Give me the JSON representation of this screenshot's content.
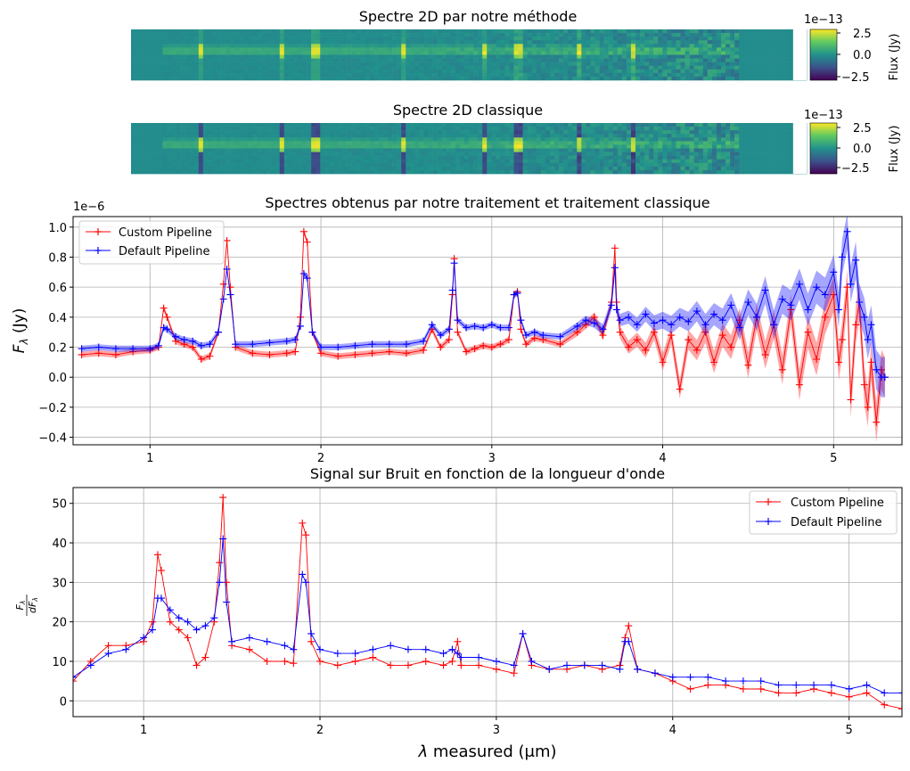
{
  "figure": {
    "heatmaps": [
      {
        "title": "Spectre 2D par notre méthode",
        "colorbar": {
          "label": "Flux (Jy)",
          "exponent": "1e−13",
          "ticks": [
            "2.5",
            "0.0",
            "−2.5"
          ]
        }
      },
      {
        "title": "Spectre 2D classique",
        "colorbar": {
          "label": "Flux (Jy)",
          "exponent": "1e−13",
          "ticks": [
            "2.5",
            "0.0",
            "−2.5"
          ]
        }
      }
    ]
  },
  "chart_data": [
    {
      "type": "heatmap",
      "title": "Spectre 2D par notre méthode",
      "colormap": "viridis",
      "value_range": [
        -3.5,
        3.5
      ],
      "value_scale": "1e-13",
      "bright_emission_rows": "central row brightest; scattered noise increasing toward long wavelengths",
      "colorbar_label": "Flux (Jy)"
    },
    {
      "type": "heatmap",
      "title": "Spectre 2D classique",
      "colormap": "viridis",
      "value_range": [
        -3.5,
        3.5
      ],
      "value_scale": "1e-13",
      "colorbar_label": "Flux (Jy)"
    },
    {
      "type": "line",
      "title": "Spectres obtenus par notre traitement et traitement classique",
      "ylabel": "F_λ (Jy)",
      "yscale_note": "1e−6",
      "xlim": [
        0.55,
        5.4
      ],
      "ylim": [
        -0.45,
        1.07
      ],
      "xticks": [
        1,
        2,
        3,
        4,
        5
      ],
      "yticks": [
        -0.4,
        -0.2,
        0.0,
        0.2,
        0.4,
        0.6,
        0.8,
        1.0
      ],
      "ytick_labels": [
        "−0.4",
        "−0.2",
        "0.0",
        "0.2",
        "0.4",
        "0.6",
        "0.8",
        "1.0"
      ],
      "grid": true,
      "legend_position": "upper-left",
      "series": [
        {
          "name": "Custom Pipeline",
          "color": "#ff0000",
          "x": [
            0.6,
            0.7,
            0.8,
            0.9,
            1.0,
            1.05,
            1.08,
            1.1,
            1.15,
            1.2,
            1.25,
            1.3,
            1.35,
            1.4,
            1.43,
            1.45,
            1.47,
            1.5,
            1.6,
            1.7,
            1.8,
            1.85,
            1.88,
            1.9,
            1.92,
            1.95,
            2.0,
            2.1,
            2.2,
            2.3,
            2.4,
            2.5,
            2.6,
            2.65,
            2.7,
            2.75,
            2.77,
            2.78,
            2.8,
            2.85,
            2.9,
            2.95,
            3.0,
            3.05,
            3.1,
            3.13,
            3.15,
            3.17,
            3.2,
            3.25,
            3.3,
            3.4,
            3.5,
            3.55,
            3.6,
            3.65,
            3.7,
            3.72,
            3.73,
            3.75,
            3.8,
            3.85,
            3.9,
            3.95,
            4.0,
            4.05,
            4.1,
            4.15,
            4.2,
            4.25,
            4.3,
            4.35,
            4.4,
            4.45,
            4.5,
            4.55,
            4.6,
            4.65,
            4.7,
            4.75,
            4.8,
            4.85,
            4.9,
            4.95,
            5.0,
            5.03,
            5.05,
            5.08,
            5.1,
            5.13,
            5.15,
            5.18,
            5.2,
            5.22,
            5.25,
            5.28,
            5.3
          ],
          "y": [
            0.15,
            0.16,
            0.15,
            0.17,
            0.18,
            0.2,
            0.46,
            0.4,
            0.24,
            0.22,
            0.2,
            0.12,
            0.14,
            0.3,
            0.62,
            0.91,
            0.6,
            0.2,
            0.16,
            0.15,
            0.16,
            0.17,
            0.4,
            0.97,
            0.9,
            0.3,
            0.16,
            0.14,
            0.15,
            0.16,
            0.17,
            0.16,
            0.18,
            0.32,
            0.2,
            0.25,
            0.55,
            0.79,
            0.3,
            0.17,
            0.19,
            0.21,
            0.2,
            0.22,
            0.25,
            0.55,
            0.57,
            0.32,
            0.22,
            0.26,
            0.25,
            0.22,
            0.3,
            0.35,
            0.4,
            0.28,
            0.5,
            0.86,
            0.5,
            0.3,
            0.2,
            0.25,
            0.18,
            0.3,
            0.1,
            0.28,
            -0.08,
            0.25,
            0.18,
            0.3,
            0.1,
            0.28,
            0.2,
            0.38,
            0.08,
            0.4,
            0.15,
            0.35,
            0.05,
            0.45,
            -0.05,
            0.3,
            0.12,
            0.4,
            0.55,
            0.1,
            0.25,
            0.6,
            -0.15,
            0.35,
            0.5,
            -0.05,
            -0.2,
            0.1,
            -0.3,
            0.05,
            0.0
          ]
        },
        {
          "name": "Default Pipeline",
          "color": "#0000ff",
          "x": [
            0.6,
            0.7,
            0.8,
            0.9,
            1.0,
            1.05,
            1.08,
            1.1,
            1.15,
            1.2,
            1.25,
            1.3,
            1.35,
            1.4,
            1.43,
            1.45,
            1.47,
            1.5,
            1.6,
            1.7,
            1.8,
            1.85,
            1.88,
            1.9,
            1.92,
            1.95,
            2.0,
            2.1,
            2.2,
            2.3,
            2.4,
            2.5,
            2.6,
            2.65,
            2.7,
            2.75,
            2.77,
            2.78,
            2.8,
            2.85,
            2.9,
            2.95,
            3.0,
            3.05,
            3.1,
            3.13,
            3.15,
            3.17,
            3.2,
            3.25,
            3.3,
            3.4,
            3.5,
            3.55,
            3.6,
            3.65,
            3.7,
            3.72,
            3.73,
            3.75,
            3.8,
            3.85,
            3.9,
            3.95,
            4.0,
            4.05,
            4.1,
            4.15,
            4.2,
            4.25,
            4.3,
            4.35,
            4.4,
            4.45,
            4.5,
            4.55,
            4.6,
            4.65,
            4.7,
            4.75,
            4.8,
            4.85,
            4.9,
            4.95,
            5.0,
            5.03,
            5.05,
            5.08,
            5.1,
            5.13,
            5.15,
            5.18,
            5.2,
            5.22,
            5.25,
            5.28,
            5.3
          ],
          "y": [
            0.19,
            0.2,
            0.19,
            0.19,
            0.19,
            0.21,
            0.33,
            0.32,
            0.27,
            0.25,
            0.24,
            0.21,
            0.22,
            0.3,
            0.52,
            0.72,
            0.55,
            0.22,
            0.22,
            0.23,
            0.24,
            0.25,
            0.34,
            0.69,
            0.66,
            0.3,
            0.2,
            0.2,
            0.21,
            0.22,
            0.22,
            0.22,
            0.24,
            0.35,
            0.28,
            0.32,
            0.58,
            0.76,
            0.38,
            0.33,
            0.34,
            0.33,
            0.35,
            0.33,
            0.33,
            0.55,
            0.56,
            0.38,
            0.28,
            0.3,
            0.28,
            0.27,
            0.34,
            0.38,
            0.36,
            0.32,
            0.48,
            0.73,
            0.45,
            0.38,
            0.4,
            0.35,
            0.42,
            0.36,
            0.38,
            0.35,
            0.4,
            0.37,
            0.44,
            0.35,
            0.42,
            0.38,
            0.48,
            0.33,
            0.5,
            0.4,
            0.58,
            0.35,
            0.52,
            0.48,
            0.62,
            0.45,
            0.6,
            0.55,
            0.7,
            0.45,
            0.8,
            0.97,
            0.62,
            0.78,
            0.5,
            0.4,
            0.25,
            0.35,
            0.05,
            0.0,
            0.0
          ]
        }
      ]
    },
    {
      "type": "line",
      "title": "Signal sur Bruit en fonction de la longueur d'onde",
      "xlabel": "λ measured (μm)",
      "ylabel": "F_λ / dF_λ",
      "xlim": [
        0.6,
        5.3
      ],
      "ylim": [
        -4,
        54
      ],
      "xticks": [
        1,
        2,
        3,
        4,
        5
      ],
      "yticks": [
        0,
        10,
        20,
        30,
        40,
        50
      ],
      "grid": true,
      "legend_position": "upper-right",
      "series": [
        {
          "name": "Custom Pipeline",
          "color": "#ff0000",
          "x": [
            0.6,
            0.7,
            0.8,
            0.9,
            1.0,
            1.05,
            1.08,
            1.1,
            1.15,
            1.2,
            1.25,
            1.3,
            1.35,
            1.4,
            1.43,
            1.45,
            1.47,
            1.5,
            1.6,
            1.7,
            1.8,
            1.85,
            1.9,
            1.92,
            1.95,
            2.0,
            2.1,
            2.2,
            2.3,
            2.4,
            2.5,
            2.6,
            2.7,
            2.75,
            2.78,
            2.8,
            2.9,
            3.0,
            3.1,
            3.15,
            3.2,
            3.3,
            3.4,
            3.5,
            3.6,
            3.7,
            3.73,
            3.75,
            3.8,
            3.9,
            4.0,
            4.1,
            4.2,
            4.3,
            4.4,
            4.5,
            4.6,
            4.7,
            4.8,
            4.9,
            5.0,
            5.1,
            5.2,
            5.3
          ],
          "y": [
            5,
            10,
            14,
            14,
            15,
            20,
            37,
            33,
            20,
            18,
            16,
            9,
            11,
            20,
            35,
            51.5,
            30,
            14,
            13,
            10,
            10,
            9.5,
            45,
            42,
            15,
            10,
            9,
            10,
            11,
            9,
            9,
            10,
            9,
            10,
            15,
            9,
            9,
            8,
            7,
            17,
            9,
            8,
            8,
            9,
            8,
            9,
            16,
            19,
            8,
            7,
            5,
            3,
            4,
            4,
            3,
            3,
            2,
            2,
            3,
            2,
            1,
            2,
            -1,
            -2
          ]
        },
        {
          "name": "Default Pipeline",
          "color": "#0000ff",
          "x": [
            0.6,
            0.7,
            0.8,
            0.9,
            1.0,
            1.05,
            1.08,
            1.1,
            1.15,
            1.2,
            1.25,
            1.3,
            1.35,
            1.4,
            1.43,
            1.45,
            1.47,
            1.5,
            1.6,
            1.7,
            1.8,
            1.85,
            1.9,
            1.92,
            1.95,
            2.0,
            2.1,
            2.2,
            2.3,
            2.4,
            2.5,
            2.6,
            2.7,
            2.75,
            2.78,
            2.8,
            2.9,
            3.0,
            3.1,
            3.15,
            3.2,
            3.3,
            3.4,
            3.5,
            3.6,
            3.7,
            3.73,
            3.75,
            3.8,
            3.9,
            4.0,
            4.1,
            4.2,
            4.3,
            4.4,
            4.5,
            4.6,
            4.7,
            4.8,
            4.9,
            5.0,
            5.1,
            5.2,
            5.3
          ],
          "y": [
            6,
            9,
            12,
            13,
            16,
            18,
            26,
            26,
            23,
            21,
            20,
            18,
            19,
            21,
            30,
            41,
            25,
            15,
            16,
            15,
            14,
            13,
            32,
            30,
            17,
            13,
            12,
            12,
            13,
            14,
            13,
            13,
            12,
            13,
            12,
            11,
            11,
            10,
            9,
            17,
            10,
            8,
            9,
            9,
            9,
            8,
            15,
            15,
            8,
            7,
            6,
            6,
            6,
            5,
            5,
            5,
            4,
            4,
            4,
            4,
            3,
            4,
            2,
            2
          ]
        }
      ]
    }
  ]
}
